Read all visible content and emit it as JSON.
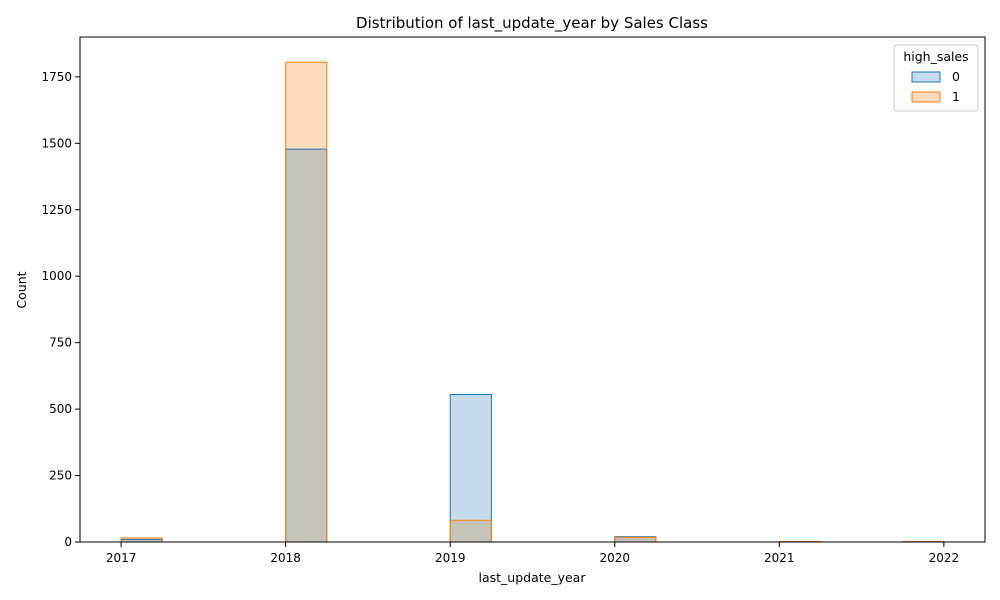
{
  "chart_data": {
    "type": "bar",
    "title": "Distribution of last_update_year by Sales Class",
    "xlabel": "last_update_year",
    "ylabel": "Count",
    "xlim": [
      2016.75,
      2022.25
    ],
    "ylim": [
      0,
      1900
    ],
    "x_ticks": [
      "2017",
      "2018",
      "2019",
      "2020",
      "2021",
      "2022"
    ],
    "y_ticks": [
      "0",
      "250",
      "500",
      "750",
      "1000",
      "1250",
      "1500",
      "1750"
    ],
    "bin_edges": [
      2017.0,
      2017.25,
      2017.5,
      2017.75,
      2018.0,
      2018.25,
      2018.5,
      2018.75,
      2019.0,
      2019.25,
      2019.5,
      2019.75,
      2020.0,
      2020.25,
      2020.5,
      2020.75,
      2021.0,
      2021.25,
      2021.5,
      2021.75,
      2022.0
    ],
    "series": [
      {
        "name": "0",
        "color": "#1f77b4",
        "fill": "#c6dbee",
        "values": [
          10,
          0,
          0,
          0,
          1478,
          0,
          0,
          0,
          555,
          0,
          0,
          0,
          20,
          0,
          0,
          0,
          0,
          0,
          0,
          0
        ]
      },
      {
        "name": "1",
        "color": "#ff7f0e",
        "fill": "#ffdbbf",
        "values": [
          15,
          0,
          0,
          0,
          1805,
          0,
          0,
          0,
          82,
          0,
          0,
          0,
          18,
          0,
          0,
          0,
          2,
          0,
          0,
          2
        ]
      }
    ],
    "overlap_fill": "#c5c3ba",
    "legend": {
      "title": "high_sales",
      "position": "top-right"
    },
    "grid": false
  }
}
